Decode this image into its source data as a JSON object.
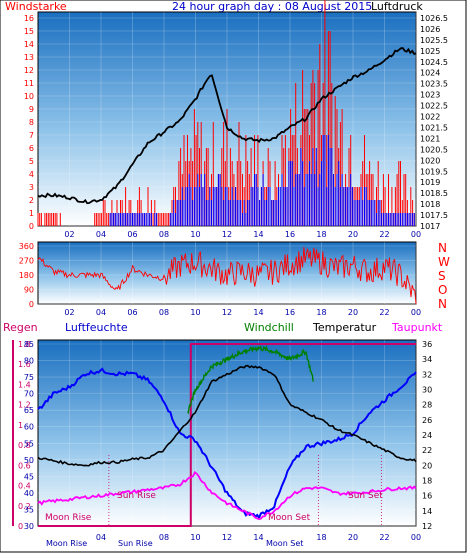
{
  "chart_data": [
    {
      "type": "line",
      "panel": "top",
      "title": "24 hour graph day : 08 August 2015",
      "left_label": "Windstarke",
      "right_label": "Luftdruck",
      "x_ticks": [
        "02",
        "04",
        "06",
        "08",
        "10",
        "12",
        "14",
        "16",
        "18",
        "20",
        "22",
        "00"
      ],
      "ylim_left": [
        0,
        16
      ],
      "y_ticks_left": [
        "0",
        "1",
        "2",
        "3",
        "4",
        "5",
        "6",
        "7",
        "8",
        "9",
        "10",
        "11",
        "12",
        "13",
        "14",
        "15",
        "16"
      ],
      "ylim_right": [
        1017,
        1026.5
      ],
      "y_ticks_right": [
        "1017",
        "1017.5",
        "1018",
        "1018.5",
        "1019",
        "1019.5",
        "1020",
        "1020.5",
        "1021",
        "1021.5",
        "1022",
        "1022.5",
        "1023",
        "1023.5",
        "1024",
        "1024.5",
        "1025",
        "1025.5",
        "1026",
        "1026.5"
      ],
      "series": [
        {
          "name": "Luftdruck",
          "color": "#000000",
          "axis": "right",
          "x": [
            0,
            1,
            2,
            3,
            4,
            5,
            6,
            7,
            8,
            9,
            10,
            11,
            12,
            13,
            14,
            15,
            16,
            17,
            18,
            19,
            20,
            21,
            22,
            23,
            24
          ],
          "values": [
            1018.4,
            1018.4,
            1018.3,
            1018.1,
            1018.2,
            1018.8,
            1019.8,
            1020.8,
            1021.3,
            1021.8,
            1022.8,
            1024,
            1021.5,
            1021,
            1020.9,
            1021,
            1021.5,
            1021.9,
            1022.8,
            1023.3,
            1023.8,
            1024.1,
            1024.6,
            1025.1,
            1024.9
          ]
        },
        {
          "name": "Windstarke",
          "color": "#ff0000",
          "axis": "left",
          "x": [
            0,
            1,
            2,
            3,
            4,
            5,
            6,
            7,
            8,
            9,
            10,
            11,
            12,
            13,
            14,
            15,
            16,
            17,
            18,
            19,
            20,
            21,
            22,
            23,
            24
          ],
          "values": [
            1,
            1,
            0,
            0,
            1,
            2,
            2,
            2,
            1,
            4,
            6,
            5,
            6,
            5,
            5,
            3,
            7,
            9,
            13,
            8,
            6,
            4,
            3,
            3,
            2
          ]
        },
        {
          "name": "Windstarke avg",
          "color": "#0000ff",
          "axis": "left",
          "x": [
            0,
            1,
            2,
            3,
            4,
            5,
            6,
            7,
            8,
            9,
            10,
            11,
            12,
            13,
            14,
            15,
            16,
            17,
            18,
            19,
            20,
            21,
            22,
            23,
            24
          ],
          "values": [
            0,
            0,
            0,
            0,
            0,
            1,
            1,
            1,
            0,
            2,
            3,
            3,
            3,
            2,
            3,
            2,
            4,
            5,
            6,
            4,
            3,
            2,
            1,
            1,
            1
          ]
        }
      ]
    },
    {
      "type": "scatter",
      "panel": "middle",
      "ylim": [
        0,
        360
      ],
      "y_ticks": [
        "0",
        "90",
        "180",
        "270",
        "360"
      ],
      "right_labels": [
        "N",
        "W",
        "S",
        "O",
        "N"
      ],
      "x_ticks": [
        "02",
        "04",
        "06",
        "08",
        "10",
        "12",
        "14",
        "16",
        "18",
        "20",
        "22",
        "00"
      ],
      "series": [
        {
          "name": "Windrichtung",
          "color": "#ff0000",
          "x": [
            0,
            1,
            2,
            3,
            4,
            5,
            6,
            7,
            8,
            9,
            10,
            11,
            12,
            13,
            14,
            15,
            16,
            17,
            18,
            19,
            20,
            21,
            22,
            23,
            24
          ],
          "values": [
            290,
            200,
            180,
            180,
            180,
            80,
            220,
            180,
            160,
            240,
            260,
            220,
            180,
            200,
            180,
            200,
            250,
            280,
            260,
            220,
            240,
            200,
            230,
            180,
            40
          ]
        }
      ]
    },
    {
      "type": "line",
      "panel": "bottom",
      "legend": {
        "regen": "Regen",
        "luftfeuchte": "Luftfeuchte",
        "windchill": "Windchill",
        "temperatur": "Temperatur",
        "taupunkt": "Taupunkt"
      },
      "x_ticks": [
        "02",
        "04",
        "06",
        "08",
        "10",
        "12",
        "14",
        "16",
        "18",
        "20",
        "22",
        "00"
      ],
      "ylim_regen": [
        0,
        1.8
      ],
      "y_ticks_regen": [
        "0",
        "0.2",
        "0.4",
        "0.6",
        "0.8",
        "1",
        "1.2",
        "1.4",
        "1.6",
        "1.8"
      ],
      "ylim_humidity": [
        30,
        85
      ],
      "y_ticks_humidity": [
        "30",
        "35",
        "40",
        "45",
        "50",
        "55",
        "60",
        "65",
        "70",
        "75",
        "80",
        "85"
      ],
      "ylim_temp": [
        12,
        36
      ],
      "y_ticks_temp": [
        "12",
        "14",
        "16",
        "18",
        "20",
        "22",
        "24",
        "26",
        "28",
        "30",
        "32",
        "34",
        "36"
      ],
      "annotations": {
        "sun_rise": "Sun Rise",
        "sun_set": "Sun Set",
        "moon_rise": "Moon Rise",
        "moon_set": "Moon Set"
      },
      "bottom_labels": {
        "moon_rise_time": "Moon Rise",
        "sun_rise_time": "Sun Rise",
        "moon_set_time": "Moon Set"
      },
      "series": [
        {
          "name": "Luftfeuchte",
          "color": "#0000ff",
          "axis": "humidity",
          "x": [
            0,
            1,
            2,
            3,
            4,
            5,
            6,
            7,
            8,
            9,
            10,
            11,
            12,
            13,
            14,
            15,
            16,
            17,
            18,
            19,
            20,
            21,
            22,
            23,
            24
          ],
          "values": [
            65,
            70,
            72,
            76,
            77,
            76,
            76,
            74,
            68,
            58,
            56,
            48,
            40,
            34,
            33,
            36,
            48,
            54,
            55,
            56,
            58,
            64,
            68,
            72,
            76
          ]
        },
        {
          "name": "Temperatur",
          "color": "#000000",
          "axis": "temp",
          "x": [
            0,
            1,
            2,
            3,
            4,
            5,
            6,
            7,
            8,
            9,
            10,
            11,
            12,
            13,
            14,
            15,
            16,
            17,
            18,
            19,
            20,
            21,
            22,
            23,
            24
          ],
          "values": [
            21,
            20.6,
            20.2,
            20,
            20.4,
            20.4,
            20.8,
            21,
            22,
            24.5,
            27,
            31,
            32,
            33,
            33,
            32,
            28,
            27,
            26,
            24.7,
            24,
            23,
            22,
            21,
            20.6
          ]
        },
        {
          "name": "Windchill",
          "color": "#008000",
          "axis": "temp",
          "x": [
            9.5,
            10,
            11,
            12,
            13,
            14,
            15,
            16,
            17,
            17.5
          ],
          "values": [
            27,
            30,
            33,
            34,
            35,
            35.5,
            35,
            34,
            35,
            31
          ]
        },
        {
          "name": "Taupunkt",
          "color": "#ff00ff",
          "axis": "temp",
          "x": [
            0,
            1,
            2,
            3,
            4,
            5,
            6,
            7,
            8,
            9,
            10,
            11,
            12,
            13,
            14,
            15,
            16,
            17,
            18,
            19,
            20,
            21,
            22,
            23,
            24
          ],
          "values": [
            15,
            15.3,
            15.5,
            15.8,
            16,
            16.3,
            16.5,
            16.8,
            17,
            17.5,
            19,
            16.5,
            15,
            14,
            13,
            14,
            16,
            17,
            17,
            16.3,
            16.3,
            16.5,
            16.8,
            17,
            17
          ]
        },
        {
          "name": "Regen",
          "color": "#cc0066",
          "axis": "regen",
          "x": [
            0,
            9.7,
            9.7,
            24
          ],
          "values": [
            0,
            0,
            1.8,
            1.8
          ]
        }
      ]
    }
  ]
}
